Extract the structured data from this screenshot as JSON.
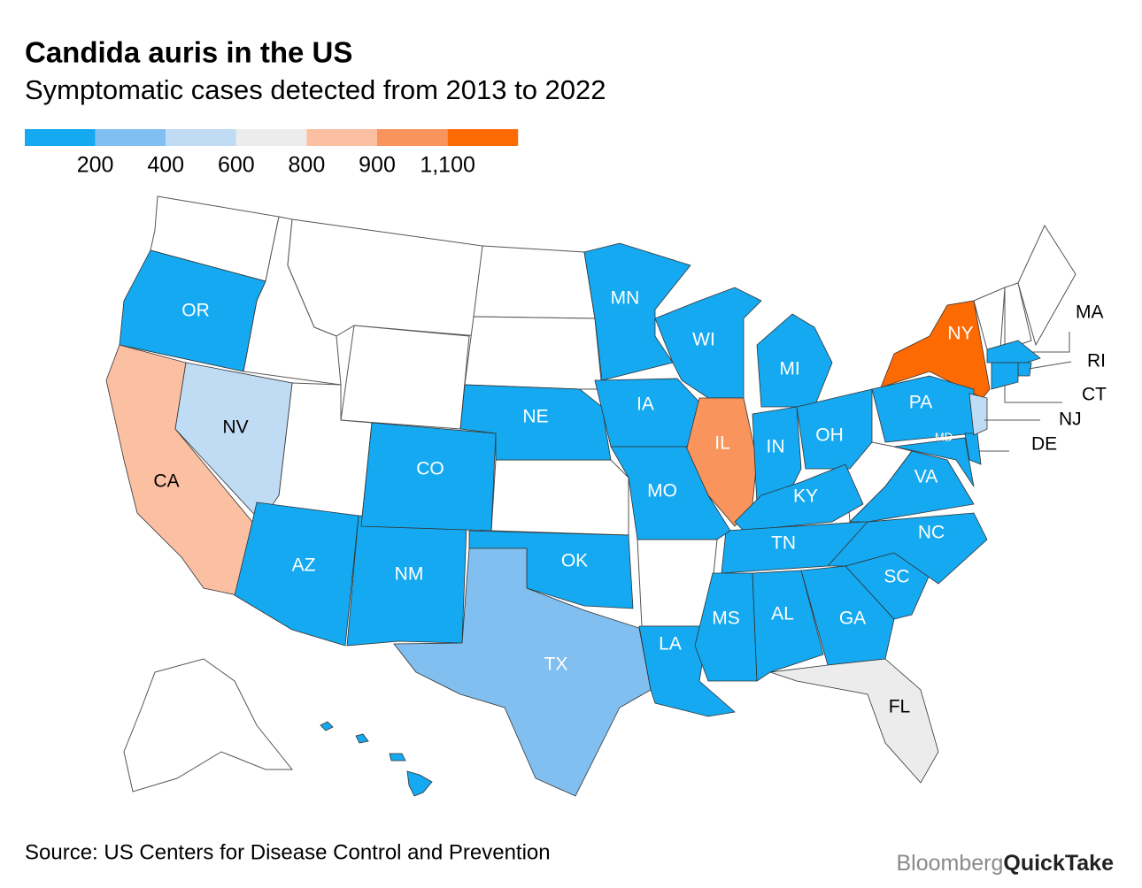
{
  "chart_data": {
    "type": "choropleth",
    "title": "Candida auris in the US",
    "subtitle": "Symptomatic cases detected from 2013 to 2022",
    "legend": {
      "colors": [
        "#14a9f0",
        "#80bff0",
        "#c0dbf4",
        "#ececec",
        "#fbc0a2",
        "#f8945c",
        "#fd6a02"
      ],
      "ticks": [
        200,
        400,
        600,
        800,
        900,
        {
          "value": 1100,
          "label": "1,100"
        }
      ]
    },
    "states": [
      {
        "label": "OR",
        "color": "#14a9f0"
      },
      {
        "label": "CA",
        "color": "#fbc0a2"
      },
      {
        "label": "NV",
        "color": "#c0dbf4"
      },
      {
        "label": "AZ",
        "color": "#14a9f0"
      },
      {
        "label": "NM",
        "color": "#14a9f0"
      },
      {
        "label": "CO",
        "color": "#14a9f0"
      },
      {
        "label": "NE",
        "color": "#14a9f0"
      },
      {
        "label": "MN",
        "color": "#14a9f0"
      },
      {
        "label": "IA",
        "color": "#14a9f0"
      },
      {
        "label": "WI",
        "color": "#14a9f0"
      },
      {
        "label": "MI",
        "color": "#14a9f0"
      },
      {
        "label": "IL",
        "color": "#f8945c"
      },
      {
        "label": "IN",
        "color": "#14a9f0"
      },
      {
        "label": "OH",
        "color": "#14a9f0"
      },
      {
        "label": "KY",
        "color": "#14a9f0"
      },
      {
        "label": "TN",
        "color": "#14a9f0"
      },
      {
        "label": "MO",
        "color": "#14a9f0"
      },
      {
        "label": "OK",
        "color": "#14a9f0"
      },
      {
        "label": "TX",
        "color": "#80bff0"
      },
      {
        "label": "LA",
        "color": "#14a9f0"
      },
      {
        "label": "MS",
        "color": "#14a9f0"
      },
      {
        "label": "AL",
        "color": "#14a9f0"
      },
      {
        "label": "GA",
        "color": "#14a9f0"
      },
      {
        "label": "SC",
        "color": "#14a9f0"
      },
      {
        "label": "NC",
        "color": "#14a9f0"
      },
      {
        "label": "VA",
        "color": "#14a9f0"
      },
      {
        "label": "FL",
        "color": "#ececec"
      },
      {
        "label": "NY",
        "color": "#fd6a02"
      },
      {
        "label": "PA",
        "color": "#14a9f0"
      },
      {
        "label": "MD",
        "color": "#14a9f0"
      },
      {
        "label": "DE",
        "color": "#14a9f0"
      },
      {
        "label": "NJ",
        "color": "#c0dbf4"
      },
      {
        "label": "MA",
        "color": "#14a9f0"
      },
      {
        "label": "RI",
        "color": "#14a9f0"
      },
      {
        "label": "CT",
        "color": "#14a9f0"
      },
      {
        "color": "#14a9f0"
      }
    ]
  },
  "source": "Source: US Centers for Disease Control and Prevention",
  "brand": {
    "part1": "Bloomberg",
    "part2": "QuickTake"
  }
}
